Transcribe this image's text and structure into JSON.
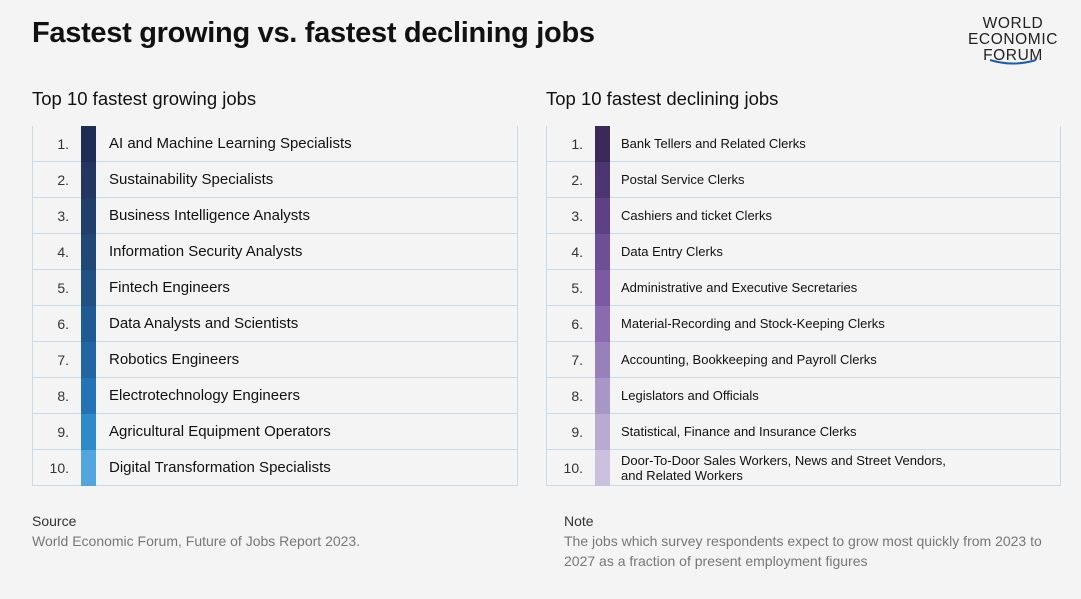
{
  "title": "Fastest growing vs. fastest declining jobs",
  "logo": {
    "lines": [
      "WORLD",
      "ECONOMIC",
      "FORUM"
    ]
  },
  "chart_data": [
    {
      "type": "table",
      "title": "Top 10 fastest growing jobs",
      "ranks": [
        "1.",
        "2.",
        "3.",
        "4.",
        "5.",
        "6.",
        "7.",
        "8.",
        "9.",
        "10."
      ],
      "jobs": [
        "AI and Machine Learning Specialists",
        "Sustainability Specialists",
        "Business Intelligence Analysts",
        "Information Security Analysts",
        "Fintech Engineers",
        "Data Analysts and Scientists",
        "Robotics Engineers",
        "Electrotechnology Engineers",
        "Agricultural Equipment Operators",
        "Digital Transformation Specialists"
      ],
      "colors": [
        "#1f2d55",
        "#22365f",
        "#203f6b",
        "#1f4877",
        "#1f5183",
        "#1f5a92",
        "#2166a3",
        "#2474b5",
        "#2e8acb",
        "#52a6dd"
      ]
    },
    {
      "type": "table",
      "title": "Top 10 fastest declining jobs",
      "ranks": [
        "1.",
        "2.",
        "3.",
        "4.",
        "5.",
        "6.",
        "7.",
        "8.",
        "9.",
        "10."
      ],
      "jobs": [
        "Bank Tellers and Related Clerks",
        "Postal Service Clerks",
        "Cashiers and ticket Clerks",
        "Data Entry Clerks",
        "Administrative and Executive Secretaries",
        "Material-Recording and Stock-Keeping Clerks",
        "Accounting, Bookkeeping and Payroll Clerks",
        "Legislators and Officials",
        "Statistical, Finance and Insurance Clerks",
        "Door-To-Door Sales Workers, News and Street Vendors, and Related Workers"
      ],
      "colors": [
        "#3b2a58",
        "#4c3570",
        "#5e4185",
        "#6e4e95",
        "#7b5aa3",
        "#8a6bb0",
        "#9880bb",
        "#a896c6",
        "#b8aad0",
        "#cbc1de"
      ]
    }
  ],
  "footer": {
    "source_label": "Source",
    "source_text": "World Economic Forum, Future of Jobs Report 2023.",
    "note_label": "Note",
    "note_text": "The jobs which survey respondents expect to grow most quickly from 2023 to 2027 as a fraction of present employment figures"
  }
}
